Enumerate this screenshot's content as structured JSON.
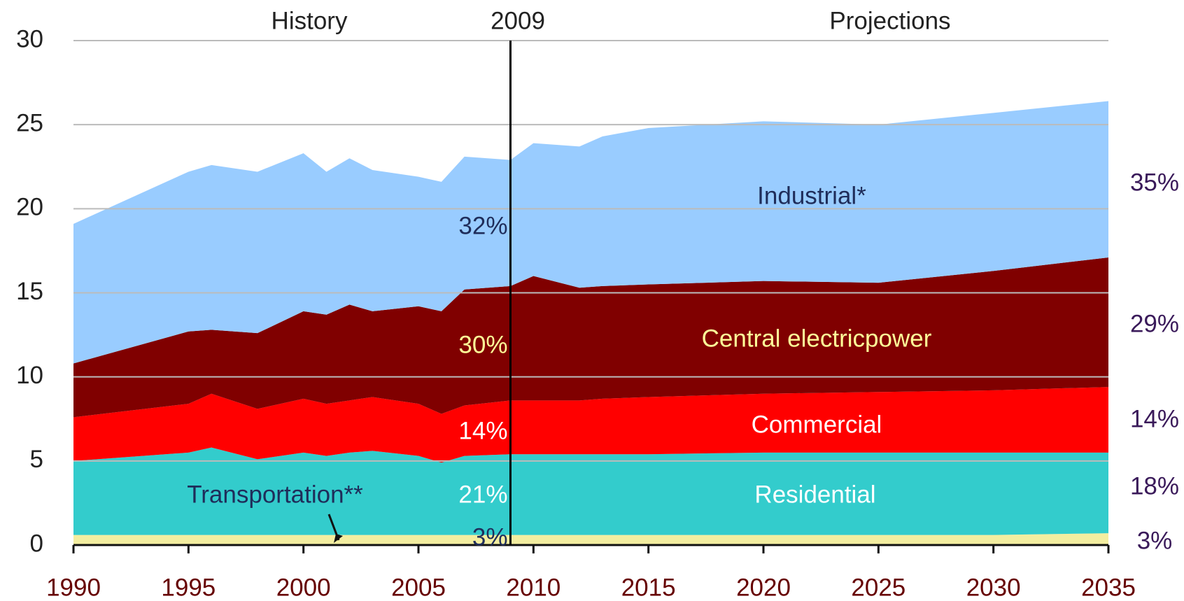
{
  "chart_data": {
    "type": "stacked_area",
    "x": [
      1990,
      1995,
      1996,
      1998,
      2000,
      2001,
      2002,
      2003,
      2005,
      2006,
      2007,
      2009,
      2010,
      2012,
      2013,
      2015,
      2020,
      2025,
      2030,
      2035
    ],
    "series": [
      {
        "name": "Transportation**",
        "color": "#f3eea0",
        "values": [
          0.6,
          0.6,
          0.6,
          0.6,
          0.6,
          0.6,
          0.6,
          0.6,
          0.6,
          0.6,
          0.6,
          0.6,
          0.6,
          0.6,
          0.6,
          0.6,
          0.6,
          0.6,
          0.6,
          0.7
        ]
      },
      {
        "name": "Residential",
        "color": "#33cccc",
        "values": [
          4.4,
          4.9,
          5.2,
          4.5,
          4.9,
          4.7,
          4.9,
          5.0,
          4.7,
          4.3,
          4.7,
          4.8,
          4.8,
          4.8,
          4.8,
          4.8,
          4.9,
          4.9,
          4.9,
          4.8
        ]
      },
      {
        "name": "Commercial",
        "color": "#ff0000",
        "values": [
          2.6,
          2.9,
          3.2,
          3.0,
          3.2,
          3.1,
          3.1,
          3.2,
          3.1,
          2.9,
          3.0,
          3.2,
          3.2,
          3.2,
          3.3,
          3.4,
          3.5,
          3.6,
          3.7,
          3.9
        ]
      },
      {
        "name": "Central electricpower",
        "color": "#800000",
        "values": [
          3.2,
          4.3,
          3.8,
          4.5,
          5.2,
          5.3,
          5.7,
          5.1,
          5.8,
          6.1,
          6.9,
          6.8,
          7.4,
          6.7,
          6.7,
          6.7,
          6.7,
          6.5,
          7.1,
          7.7
        ]
      },
      {
        "name": "Industrial*",
        "color": "#99ccff",
        "values": [
          8.3,
          9.5,
          9.8,
          9.6,
          9.4,
          8.5,
          8.7,
          8.4,
          7.7,
          7.7,
          7.9,
          7.5,
          7.9,
          8.4,
          8.9,
          9.3,
          9.5,
          9.4,
          9.4,
          9.3
        ]
      }
    ],
    "xlim": [
      1990,
      2035
    ],
    "xticks": [
      1990,
      1995,
      2000,
      2005,
      2010,
      2015,
      2020,
      2025,
      2030,
      2035
    ],
    "ylim": [
      0,
      30
    ],
    "yticks": [
      0,
      5,
      10,
      15,
      20,
      25,
      30
    ],
    "grid": true,
    "annotations": {
      "history": "History",
      "divider": "2009",
      "projections": "Projections"
    },
    "divider_x": 2009,
    "shares_2009": [
      "3%",
      "21%",
      "14%",
      "30%",
      "32%"
    ],
    "shares_2035": [
      "3%",
      "18%",
      "14%",
      "29%",
      "35%"
    ]
  }
}
